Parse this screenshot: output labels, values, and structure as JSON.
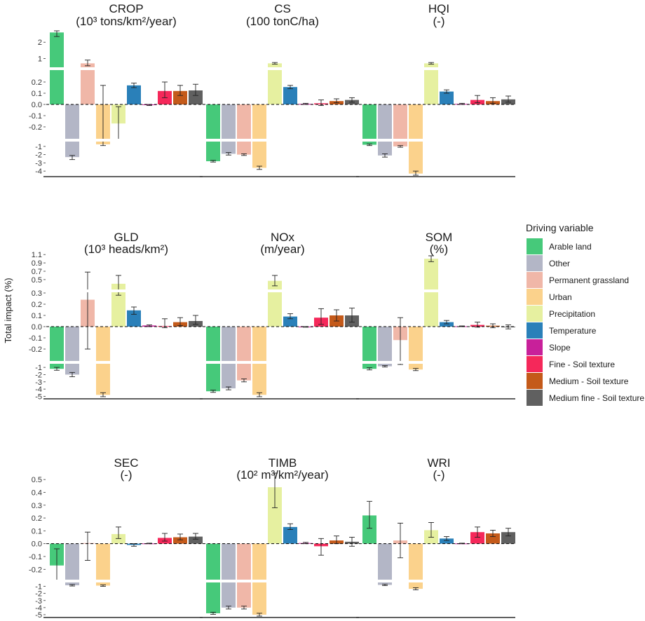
{
  "y_axis_label": "Total impact (%)",
  "legend": {
    "title": "Driving variable",
    "entries": [
      {
        "name": "Arable land",
        "color": "#46c97a"
      },
      {
        "name": "Other",
        "color": "#b3b6c6"
      },
      {
        "name": "Permanent grassland",
        "color": "#f0b7a8"
      },
      {
        "name": "Urban",
        "color": "#fbd28c"
      },
      {
        "name": "Precipitation",
        "color": "#e6f0a0"
      },
      {
        "name": "Temperature",
        "color": "#2a80b9"
      },
      {
        "name": "Slope",
        "color": "#c8209a"
      },
      {
        "name": "Fine - Soil texture",
        "color": "#f5285a"
      },
      {
        "name": "Medium - Soil texture",
        "color": "#c45a1a"
      },
      {
        "name": "Medium fine - Soil texture",
        "color": "#606060"
      }
    ]
  },
  "chart_data": [
    {
      "type": "bar",
      "title": "CROP",
      "unit": "(10³ tons/km²/year)",
      "upper_ticks": [
        "2",
        "1"
      ],
      "upper_range": [
        0.5,
        2.7
      ],
      "mid_ticks": [
        "0.2",
        "0.1",
        "0.0",
        "-0.1",
        "-0.2"
      ],
      "mid_range": [
        -0.3,
        0.3
      ],
      "lower_ticks": [
        "-1",
        "-2",
        "-3",
        "-4"
      ],
      "lower_range": [
        -4.5,
        -0.5
      ],
      "values": [
        2.6,
        -2.3,
        0.7,
        -0.75,
        -0.17,
        0.17,
        -0.005,
        0.12,
        0.12,
        0.125
      ],
      "err_low": [
        2.35,
        -2.6,
        0.55,
        -0.9,
        -0.35,
        0.15,
        -0.01,
        0.06,
        0.08,
        0.08
      ],
      "err_high": [
        2.8,
        -2.1,
        0.9,
        0.17,
        -0.02,
        0.19,
        0.0,
        0.2,
        0.17,
        0.18
      ]
    },
    {
      "type": "bar",
      "title": "CS",
      "unit": "(100 tonC/ha)",
      "upper_ticks": [],
      "upper_range": [
        0.5,
        2.7
      ],
      "mid_ticks": [],
      "mid_range": [
        -0.3,
        0.3
      ],
      "lower_ticks": [],
      "lower_range": [
        -4.5,
        -0.5
      ],
      "values": [
        -2.8,
        -1.9,
        -2.0,
        -3.6,
        0.7,
        0.155,
        0.005,
        0.01,
        0.03,
        0.04
      ],
      "err_low": [
        -2.9,
        -2.05,
        -2.1,
        -3.8,
        0.65,
        0.14,
        0.0,
        -0.01,
        0.015,
        0.02
      ],
      "err_high": [
        -2.7,
        -1.75,
        -1.9,
        -3.4,
        0.75,
        0.17,
        0.01,
        0.04,
        0.05,
        0.06
      ]
    },
    {
      "type": "bar",
      "title": "HQI",
      "unit": "(-)",
      "upper_ticks": [],
      "upper_range": [
        0.5,
        2.7
      ],
      "mid_ticks": [],
      "mid_range": [
        -0.3,
        0.3
      ],
      "lower_ticks": [],
      "lower_range": [
        -4.5,
        -0.5
      ],
      "values": [
        -0.8,
        -2.1,
        -1.0,
        -4.3,
        0.7,
        0.115,
        0.005,
        0.04,
        0.03,
        0.045
      ],
      "err_low": [
        -0.9,
        -2.3,
        -1.1,
        -4.5,
        0.65,
        0.1,
        0.0,
        0.015,
        0.01,
        0.02
      ],
      "err_high": [
        -0.7,
        -1.9,
        -0.9,
        -4.0,
        0.75,
        0.13,
        0.01,
        0.08,
        0.06,
        0.075
      ]
    },
    {
      "type": "bar",
      "title": "GLD",
      "unit": "(10³ heads/km²)",
      "upper_ticks": [
        "1.1",
        "0.9",
        "0.7",
        "0.5",
        "0.3"
      ],
      "upper_range": [
        0.28,
        1.12
      ],
      "mid_ticks": [
        "0.2",
        "0.1",
        "0.0",
        "-0.1",
        "-0.2"
      ],
      "mid_range": [
        -0.3,
        0.3
      ],
      "lower_ticks": [
        "-1",
        "-2",
        "-3",
        "-4",
        "-5"
      ],
      "lower_range": [
        -5.15,
        -0.6
      ],
      "values": [
        -1.2,
        -2.0,
        0.24,
        -4.8,
        0.4,
        0.145,
        0.01,
        0.005,
        0.04,
        0.05
      ],
      "err_low": [
        -1.4,
        -2.3,
        -0.2,
        -5.05,
        0.28,
        0.11,
        0.0,
        -0.01,
        0.01,
        0.02
      ],
      "err_high": [
        -1.0,
        -1.7,
        0.68,
        -4.5,
        0.6,
        0.175,
        0.015,
        0.07,
        0.08,
        0.1
      ]
    },
    {
      "type": "bar",
      "title": "NOx",
      "unit": "(m/year)",
      "upper_ticks": [],
      "upper_range": [
        0.28,
        1.12
      ],
      "mid_ticks": [],
      "mid_range": [
        -0.3,
        0.3
      ],
      "lower_ticks": [],
      "lower_range": [
        -5.15,
        -0.6
      ],
      "values": [
        -4.3,
        -3.9,
        -2.8,
        -4.8,
        0.47,
        0.09,
        -0.003,
        0.08,
        0.1,
        0.1
      ],
      "err_low": [
        -4.45,
        -4.1,
        -3.0,
        -5.05,
        0.35,
        0.07,
        -0.005,
        0.02,
        0.05,
        0.04
      ],
      "err_high": [
        -4.15,
        -3.7,
        -2.6,
        -4.5,
        0.6,
        0.115,
        0.0,
        0.16,
        0.15,
        0.165
      ]
    },
    {
      "type": "bar",
      "title": "SOM",
      "unit": "(%)",
      "upper_ticks": [],
      "upper_range": [
        0.28,
        1.12
      ],
      "mid_ticks": [],
      "mid_range": [
        -0.3,
        0.3
      ],
      "lower_ticks": [],
      "lower_range": [
        -5.15,
        -0.6
      ],
      "values": [
        -1.2,
        -0.85,
        -0.12,
        -1.3,
        1.0,
        0.04,
        0.003,
        0.015,
        0.008,
        0.0
      ],
      "err_low": [
        -1.35,
        -0.95,
        -0.6,
        -1.45,
        0.93,
        0.025,
        0.0,
        -0.005,
        -0.01,
        -0.02
      ],
      "err_high": [
        -1.05,
        -0.75,
        0.08,
        -1.15,
        1.07,
        0.055,
        0.006,
        0.04,
        0.025,
        0.015
      ]
    },
    {
      "type": "bar",
      "title": "SEC",
      "unit": "(-)",
      "upper_ticks": [],
      "upper_range": [
        0.275,
        0.55
      ],
      "mid_ticks": [
        "0.5",
        "0.4",
        "0.3",
        "0.2",
        "0.1",
        "0.0",
        "-0.1",
        "-0.2"
      ],
      "mid_range": [
        -0.275,
        0.55
      ],
      "lower_ticks": [
        "-1",
        "-2",
        "-3",
        "-4",
        "-5"
      ],
      "lower_range": [
        -5.2,
        -0.55
      ],
      "values": [
        -0.17,
        -0.85,
        0.005,
        -0.9,
        0.075,
        -0.01,
        0.002,
        0.045,
        0.05,
        0.055
      ],
      "err_low": [
        -0.33,
        -0.95,
        -0.13,
        -1.0,
        0.04,
        -0.02,
        0.0,
        0.02,
        0.03,
        0.035
      ],
      "err_high": [
        -0.04,
        -0.75,
        0.09,
        -0.8,
        0.13,
        0.0,
        0.004,
        0.08,
        0.075,
        0.08
      ]
    },
    {
      "type": "bar",
      "title": "TIMB",
      "unit": "(10² m³/km²/year)",
      "upper_ticks": [],
      "upper_range": [
        0.275,
        0.55
      ],
      "mid_ticks": [],
      "mid_range": [
        -0.275,
        0.55
      ],
      "lower_ticks": [],
      "lower_range": [
        -5.2,
        -0.55
      ],
      "values": [
        -4.8,
        -4.0,
        -4.0,
        -5.0,
        0.44,
        0.13,
        0.005,
        -0.02,
        0.025,
        0.015
      ],
      "err_low": [
        -4.95,
        -4.2,
        -4.2,
        -5.2,
        0.28,
        0.11,
        0.0,
        -0.09,
        0.0,
        -0.02
      ],
      "err_high": [
        -4.65,
        -3.8,
        -3.8,
        -4.8,
        0.58,
        0.155,
        0.01,
        0.04,
        0.06,
        0.05
      ]
    },
    {
      "type": "bar",
      "title": "WRI",
      "unit": "(-)",
      "upper_ticks": [],
      "upper_range": [
        0.275,
        0.55
      ],
      "mid_ticks": [],
      "mid_range": [
        -0.275,
        0.55
      ],
      "lower_ticks": [],
      "lower_range": [
        -5.2,
        -0.55
      ],
      "values": [
        0.22,
        -0.8,
        0.025,
        -1.35,
        0.105,
        0.04,
        0.002,
        0.09,
        0.08,
        0.09
      ],
      "err_low": [
        0.12,
        -0.9,
        -0.11,
        -1.5,
        0.05,
        0.025,
        0.0,
        0.05,
        0.055,
        0.06
      ],
      "err_high": [
        0.33,
        -0.7,
        0.16,
        -1.2,
        0.165,
        0.055,
        0.004,
        0.13,
        0.105,
        0.12
      ]
    }
  ]
}
